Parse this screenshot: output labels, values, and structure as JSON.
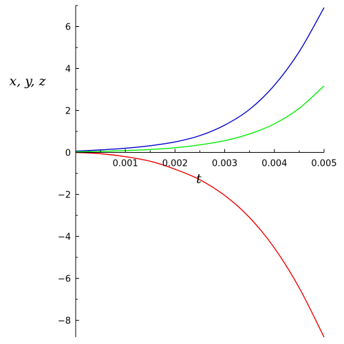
{
  "chart_data": {
    "type": "line",
    "xlabel": "t",
    "ylabel": "x, y, z",
    "xlim": [
      0,
      0.005
    ],
    "ylim": [
      -8.8,
      7
    ],
    "x_ticks": [
      0.001,
      0.002,
      0.003,
      0.004,
      0.005
    ],
    "x_tick_labels": [
      "0.001",
      "0.002",
      "0.003",
      "0.004",
      "0.005"
    ],
    "y_ticks": [
      -8,
      -6,
      -4,
      -2,
      0,
      2,
      4,
      6
    ],
    "y_tick_labels": [
      "−8",
      "−6",
      "−4",
      "−2",
      "0",
      "2",
      "4",
      "6"
    ],
    "grid": false,
    "x": [
      0,
      0.0005,
      0.001,
      0.0015,
      0.002,
      0.0025,
      0.003,
      0.0035,
      0.004,
      0.0045,
      0.005
    ],
    "series": [
      {
        "color": "#0000cc",
        "values": [
          0.06,
          0.12,
          0.2,
          0.32,
          0.5,
          0.8,
          1.3,
          2.05,
          3.2,
          4.8,
          6.9
        ]
      },
      {
        "color": "#00ee00",
        "values": [
          0.03,
          0.05,
          0.09,
          0.14,
          0.22,
          0.36,
          0.56,
          0.88,
          1.36,
          2.1,
          3.17
        ]
      },
      {
        "color": "#ee0000",
        "values": [
          0,
          -0.06,
          -0.2,
          -0.42,
          -0.8,
          -1.3,
          -2.05,
          -3.1,
          -4.55,
          -6.45,
          -8.8
        ]
      }
    ]
  }
}
